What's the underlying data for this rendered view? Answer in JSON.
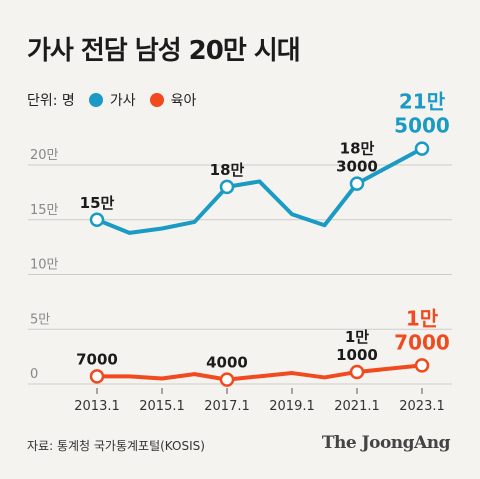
{
  "title": "가사 전담 남성 20만 시대",
  "legend": {
    "unit": "단위: 명",
    "items": [
      {
        "label": "가사",
        "color": "#1a9bc3"
      },
      {
        "label": "육아",
        "color": "#f04a1e"
      }
    ]
  },
  "chart_data": {
    "type": "line",
    "y_ticks": [
      {
        "label": "0",
        "value": 0
      },
      {
        "label": "5만",
        "value": 50000
      },
      {
        "label": "10만",
        "value": 100000
      },
      {
        "label": "15만",
        "value": 150000
      },
      {
        "label": "20만",
        "value": 200000
      }
    ],
    "ylim": [
      0,
      220000
    ],
    "x_ticks": [
      "2013.1",
      "2015.1",
      "2017.1",
      "2019.1",
      "2021.1",
      "2023.1"
    ],
    "xlim": [
      0,
      20
    ],
    "grid": true,
    "series": [
      {
        "name": "가사",
        "color": "#1a9bc3",
        "points": [
          {
            "x": 0,
            "y": 150000,
            "marker": true
          },
          {
            "x": 2,
            "y": 138000
          },
          {
            "x": 4,
            "y": 142000
          },
          {
            "x": 6,
            "y": 148000
          },
          {
            "x": 8,
            "y": 180000,
            "marker": true
          },
          {
            "x": 10,
            "y": 185000
          },
          {
            "x": 12,
            "y": 155000
          },
          {
            "x": 14,
            "y": 145000
          },
          {
            "x": 16,
            "y": 183000,
            "marker": true
          },
          {
            "x": 20,
            "y": 215000,
            "marker": true
          }
        ]
      },
      {
        "name": "육아",
        "color": "#f04a1e",
        "points": [
          {
            "x": 0,
            "y": 7000,
            "marker": true
          },
          {
            "x": 2,
            "y": 7000
          },
          {
            "x": 4,
            "y": 5000
          },
          {
            "x": 6,
            "y": 9000
          },
          {
            "x": 8,
            "y": 4000,
            "marker": true
          },
          {
            "x": 10,
            "y": 7000
          },
          {
            "x": 12,
            "y": 10000
          },
          {
            "x": 14,
            "y": 6000
          },
          {
            "x": 16,
            "y": 11000,
            "marker": true
          },
          {
            "x": 20,
            "y": 17000,
            "marker": true
          }
        ]
      }
    ],
    "annotations": [
      {
        "lines": [
          "15만"
        ],
        "x": 0,
        "y": 150000,
        "series": "가사"
      },
      {
        "lines": [
          "18만"
        ],
        "x": 8,
        "y": 180000,
        "series": "가사"
      },
      {
        "lines": [
          "18만",
          "3000"
        ],
        "x": 16,
        "y": 183000,
        "series": "가사"
      },
      {
        "lines": [
          "21만",
          "5000"
        ],
        "x": 20,
        "y": 215000,
        "series": "가사",
        "highlight": true
      },
      {
        "lines": [
          "7000"
        ],
        "x": 0,
        "y": 7000,
        "series": "육아"
      },
      {
        "lines": [
          "4000"
        ],
        "x": 8,
        "y": 4000,
        "series": "육아"
      },
      {
        "lines": [
          "1만",
          "1000"
        ],
        "x": 16,
        "y": 11000,
        "series": "육아"
      },
      {
        "lines": [
          "1만",
          "7000"
        ],
        "x": 20,
        "y": 17000,
        "series": "육아",
        "highlight": true
      }
    ]
  },
  "footer": {
    "source": "자료: 통계청 국가통계포털(KOSIS)",
    "brand": "The JoongAng"
  }
}
